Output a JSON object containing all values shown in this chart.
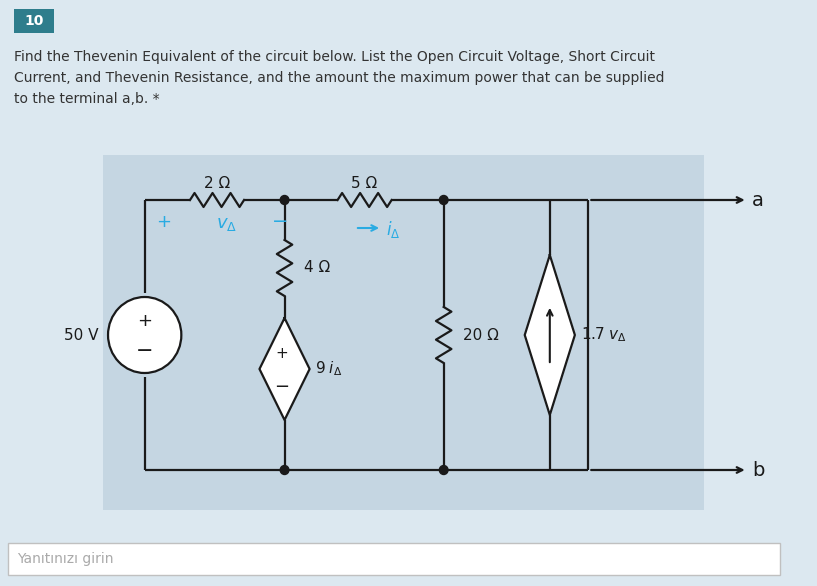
{
  "bg_color": "#dce8f0",
  "circuit_bg": "#c8d8e4",
  "right_bg": "#e0eaf0",
  "question_number": "10",
  "question_number_bg": "#2e7d8c",
  "question_text_line1": "Find the Thevenin Equivalent of the circuit below. List the Open Circuit Voltage, Short Circuit",
  "question_text_line2": "Current, and Thevenin Resistance, and the amount the maximum power that can be supplied",
  "question_text_line3": "to the terminal a,b. *",
  "answer_placeholder": "Yanıtınızı girin",
  "cyan_color": "#29ABE2",
  "black": "#1a1a1a",
  "wire_lw": 1.6
}
